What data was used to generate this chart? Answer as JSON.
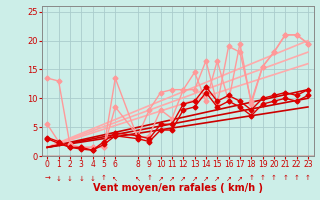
{
  "bg_color": "#cceee8",
  "grid_color": "#aacccc",
  "xlabel": "Vent moyen/en rafales ( km/h )",
  "xlim": [
    -0.5,
    23.5
  ],
  "ylim": [
    0,
    26
  ],
  "yticks": [
    0,
    5,
    10,
    15,
    20,
    25
  ],
  "xtick_labels": [
    "0",
    "1",
    "2",
    "3",
    "4",
    "5",
    "6",
    "8",
    "9",
    "10",
    "11",
    "12",
    "13",
    "14",
    "15",
    "16",
    "17",
    "18",
    "19",
    "20",
    "21",
    "22",
    "23"
  ],
  "xtick_pos": [
    0,
    1,
    2,
    3,
    4,
    5,
    6,
    8,
    9,
    10,
    11,
    12,
    13,
    14,
    15,
    16,
    17,
    18,
    19,
    20,
    21,
    22,
    23
  ],
  "series": [
    {
      "x": [
        0,
        1,
        2,
        3,
        4,
        5,
        6,
        8,
        9,
        10,
        11,
        12,
        13,
        14,
        15,
        16,
        17,
        18,
        19,
        20,
        21,
        22,
        23
      ],
      "y": [
        13.5,
        13.0,
        2.0,
        1.5,
        1.5,
        1.5,
        13.5,
        3.0,
        3.5,
        8.0,
        6.5,
        11.5,
        11.5,
        16.5,
        9.0,
        19.0,
        18.0,
        9.5,
        15.5,
        18.0,
        21.0,
        21.0,
        19.5
      ],
      "color": "#ff9999",
      "lw": 1.0,
      "marker": "D",
      "ms": 2.5
    },
    {
      "x": [
        0,
        1,
        2,
        3,
        4,
        5,
        6,
        8,
        9,
        10,
        11,
        12,
        13,
        14,
        15,
        16,
        17,
        18,
        19,
        20,
        21,
        22,
        23
      ],
      "y": [
        5.5,
        2.5,
        1.5,
        1.5,
        1.5,
        1.5,
        8.5,
        3.5,
        8.0,
        11.0,
        11.5,
        11.5,
        14.5,
        9.5,
        16.5,
        9.5,
        19.5,
        9.0,
        15.5,
        18.0,
        21.0,
        21.0,
        19.5
      ],
      "color": "#ff9999",
      "lw": 1.0,
      "marker": "D",
      "ms": 2.5
    },
    {
      "x": [
        0,
        23
      ],
      "y": [
        1.5,
        20.0
      ],
      "color": "#ffaaaa",
      "lw": 1.2,
      "marker": null,
      "ms": 0
    },
    {
      "x": [
        0,
        23
      ],
      "y": [
        1.5,
        18.0
      ],
      "color": "#ffaaaa",
      "lw": 1.2,
      "marker": null,
      "ms": 0
    },
    {
      "x": [
        0,
        23
      ],
      "y": [
        1.5,
        16.0
      ],
      "color": "#ffaaaa",
      "lw": 1.2,
      "marker": null,
      "ms": 0
    },
    {
      "x": [
        0,
        1,
        2,
        3,
        4,
        5,
        6,
        8,
        9,
        10,
        11,
        12,
        13,
        14,
        15,
        16,
        17,
        18,
        19,
        20,
        21,
        22,
        23
      ],
      "y": [
        3.2,
        2.5,
        1.5,
        1.5,
        1.0,
        2.5,
        4.0,
        3.5,
        3.0,
        5.5,
        5.5,
        9.0,
        9.5,
        12.0,
        9.5,
        10.5,
        9.5,
        8.0,
        10.0,
        10.5,
        11.0,
        10.5,
        11.5
      ],
      "color": "#dd0000",
      "lw": 1.0,
      "marker": "D",
      "ms": 2.5
    },
    {
      "x": [
        0,
        1,
        2,
        3,
        4,
        5,
        6,
        8,
        9,
        10,
        11,
        12,
        13,
        14,
        15,
        16,
        17,
        18,
        19,
        20,
        21,
        22,
        23
      ],
      "y": [
        3.0,
        2.2,
        1.5,
        1.2,
        1.0,
        2.0,
        3.5,
        3.0,
        2.5,
        4.5,
        4.5,
        8.0,
        8.5,
        11.0,
        8.5,
        9.5,
        8.5,
        7.0,
        9.0,
        9.5,
        10.0,
        9.5,
        10.5
      ],
      "color": "#dd0000",
      "lw": 1.0,
      "marker": "D",
      "ms": 2.5
    },
    {
      "x": [
        0,
        23
      ],
      "y": [
        1.5,
        11.5
      ],
      "color": "#cc0000",
      "lw": 1.2,
      "marker": null,
      "ms": 0
    },
    {
      "x": [
        0,
        23
      ],
      "y": [
        1.5,
        10.0
      ],
      "color": "#cc0000",
      "lw": 1.2,
      "marker": null,
      "ms": 0
    },
    {
      "x": [
        0,
        23
      ],
      "y": [
        1.5,
        8.5
      ],
      "color": "#cc0000",
      "lw": 1.2,
      "marker": null,
      "ms": 0
    }
  ],
  "wind_arrows": {
    "x": [
      0,
      1,
      2,
      3,
      4,
      5,
      6,
      8,
      9,
      10,
      11,
      12,
      13,
      14,
      15,
      16,
      17,
      18,
      19,
      20,
      21,
      22,
      23
    ],
    "symbols": [
      "→",
      "↓",
      "↓",
      "↓",
      "↓",
      "↑",
      "↖",
      "↖",
      "↑",
      "↗",
      "↗",
      "↗",
      "↗",
      "↗",
      "↗",
      "↗",
      "↗",
      "↑",
      "↑",
      "↑",
      "↑",
      "↑",
      "↑"
    ]
  }
}
